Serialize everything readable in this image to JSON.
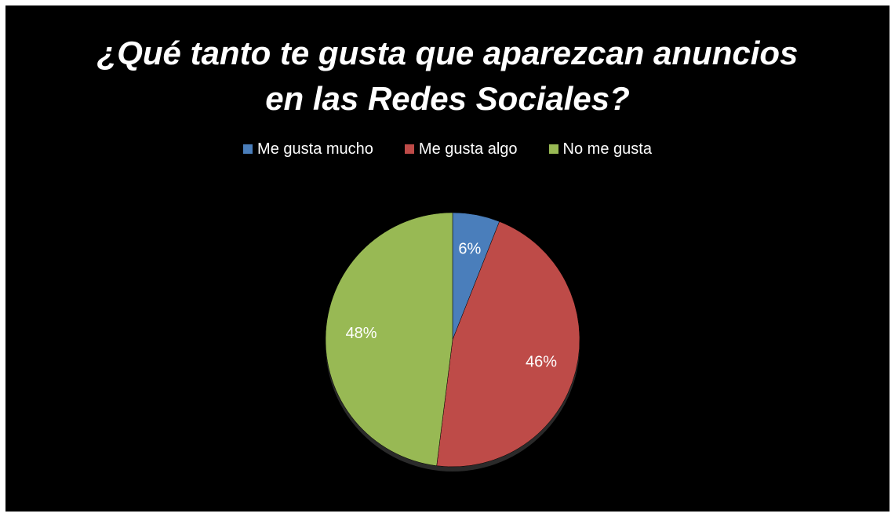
{
  "chart_data": {
    "type": "pie",
    "title_lines": [
      "¿Qué tanto te gusta que aparezcan anuncios",
      "en las Redes Sociales?"
    ],
    "legend_placement": "top",
    "series": [
      {
        "name": "Me gusta mucho",
        "value": 6,
        "label": "6%",
        "color": "#4a7ebb"
      },
      {
        "name": "Me gusta algo",
        "value": 46,
        "label": "46%",
        "color": "#be4b48"
      },
      {
        "name": "No me gusta",
        "value": 48,
        "label": "48%",
        "color": "#98b954"
      }
    ]
  }
}
